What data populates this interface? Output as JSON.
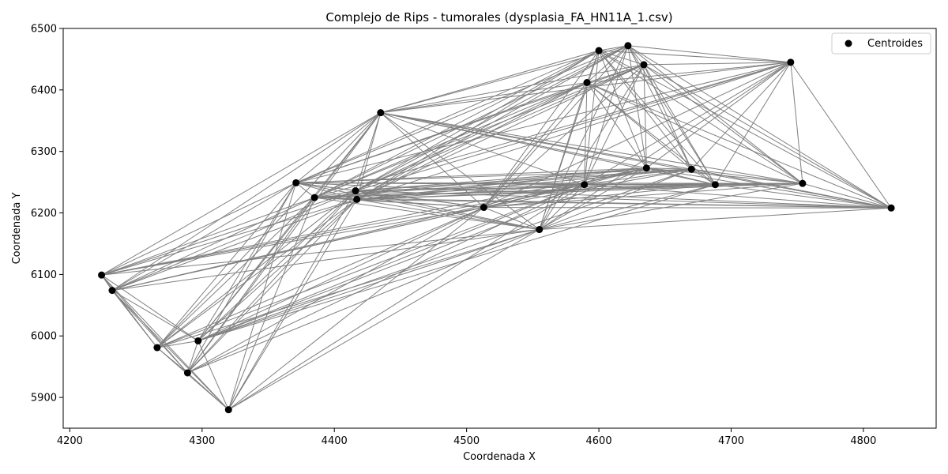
{
  "chart_data": {
    "type": "scatter",
    "title": "Complejo de Rips - tumorales (dysplasia_FA_HN11A_1.csv)",
    "xlabel": "Coordenada X",
    "ylabel": "Coordenada Y",
    "xlim": [
      4195,
      4855
    ],
    "ylim": [
      5850,
      6500
    ],
    "xticks": [
      4200,
      4300,
      4400,
      4500,
      4600,
      4700,
      4800
    ],
    "yticks": [
      5900,
      6000,
      6100,
      6200,
      6300,
      6400,
      6500
    ],
    "grid": false,
    "legend_position": "top-right",
    "colors": {
      "points": "#000000",
      "edges": "#808080"
    },
    "series": [
      {
        "name": "Centroides",
        "points": [
          [
            4224,
            6099
          ],
          [
            4232,
            6074
          ],
          [
            4266,
            5981
          ],
          [
            4289,
            5940
          ],
          [
            4297,
            5992
          ],
          [
            4320,
            5880
          ],
          [
            4371,
            6249
          ],
          [
            4385,
            6225
          ],
          [
            4416,
            6236
          ],
          [
            4417,
            6222
          ],
          [
            4435,
            6363
          ],
          [
            4513,
            6209
          ],
          [
            4555,
            6173
          ],
          [
            4589,
            6246
          ],
          [
            4591,
            6412
          ],
          [
            4600,
            6464
          ],
          [
            4622,
            6472
          ],
          [
            4634,
            6441
          ],
          [
            4636,
            6273
          ],
          [
            4670,
            6271
          ],
          [
            4688,
            6246
          ],
          [
            4745,
            6445
          ],
          [
            4754,
            6248
          ],
          [
            4821,
            6208
          ]
        ]
      }
    ]
  }
}
